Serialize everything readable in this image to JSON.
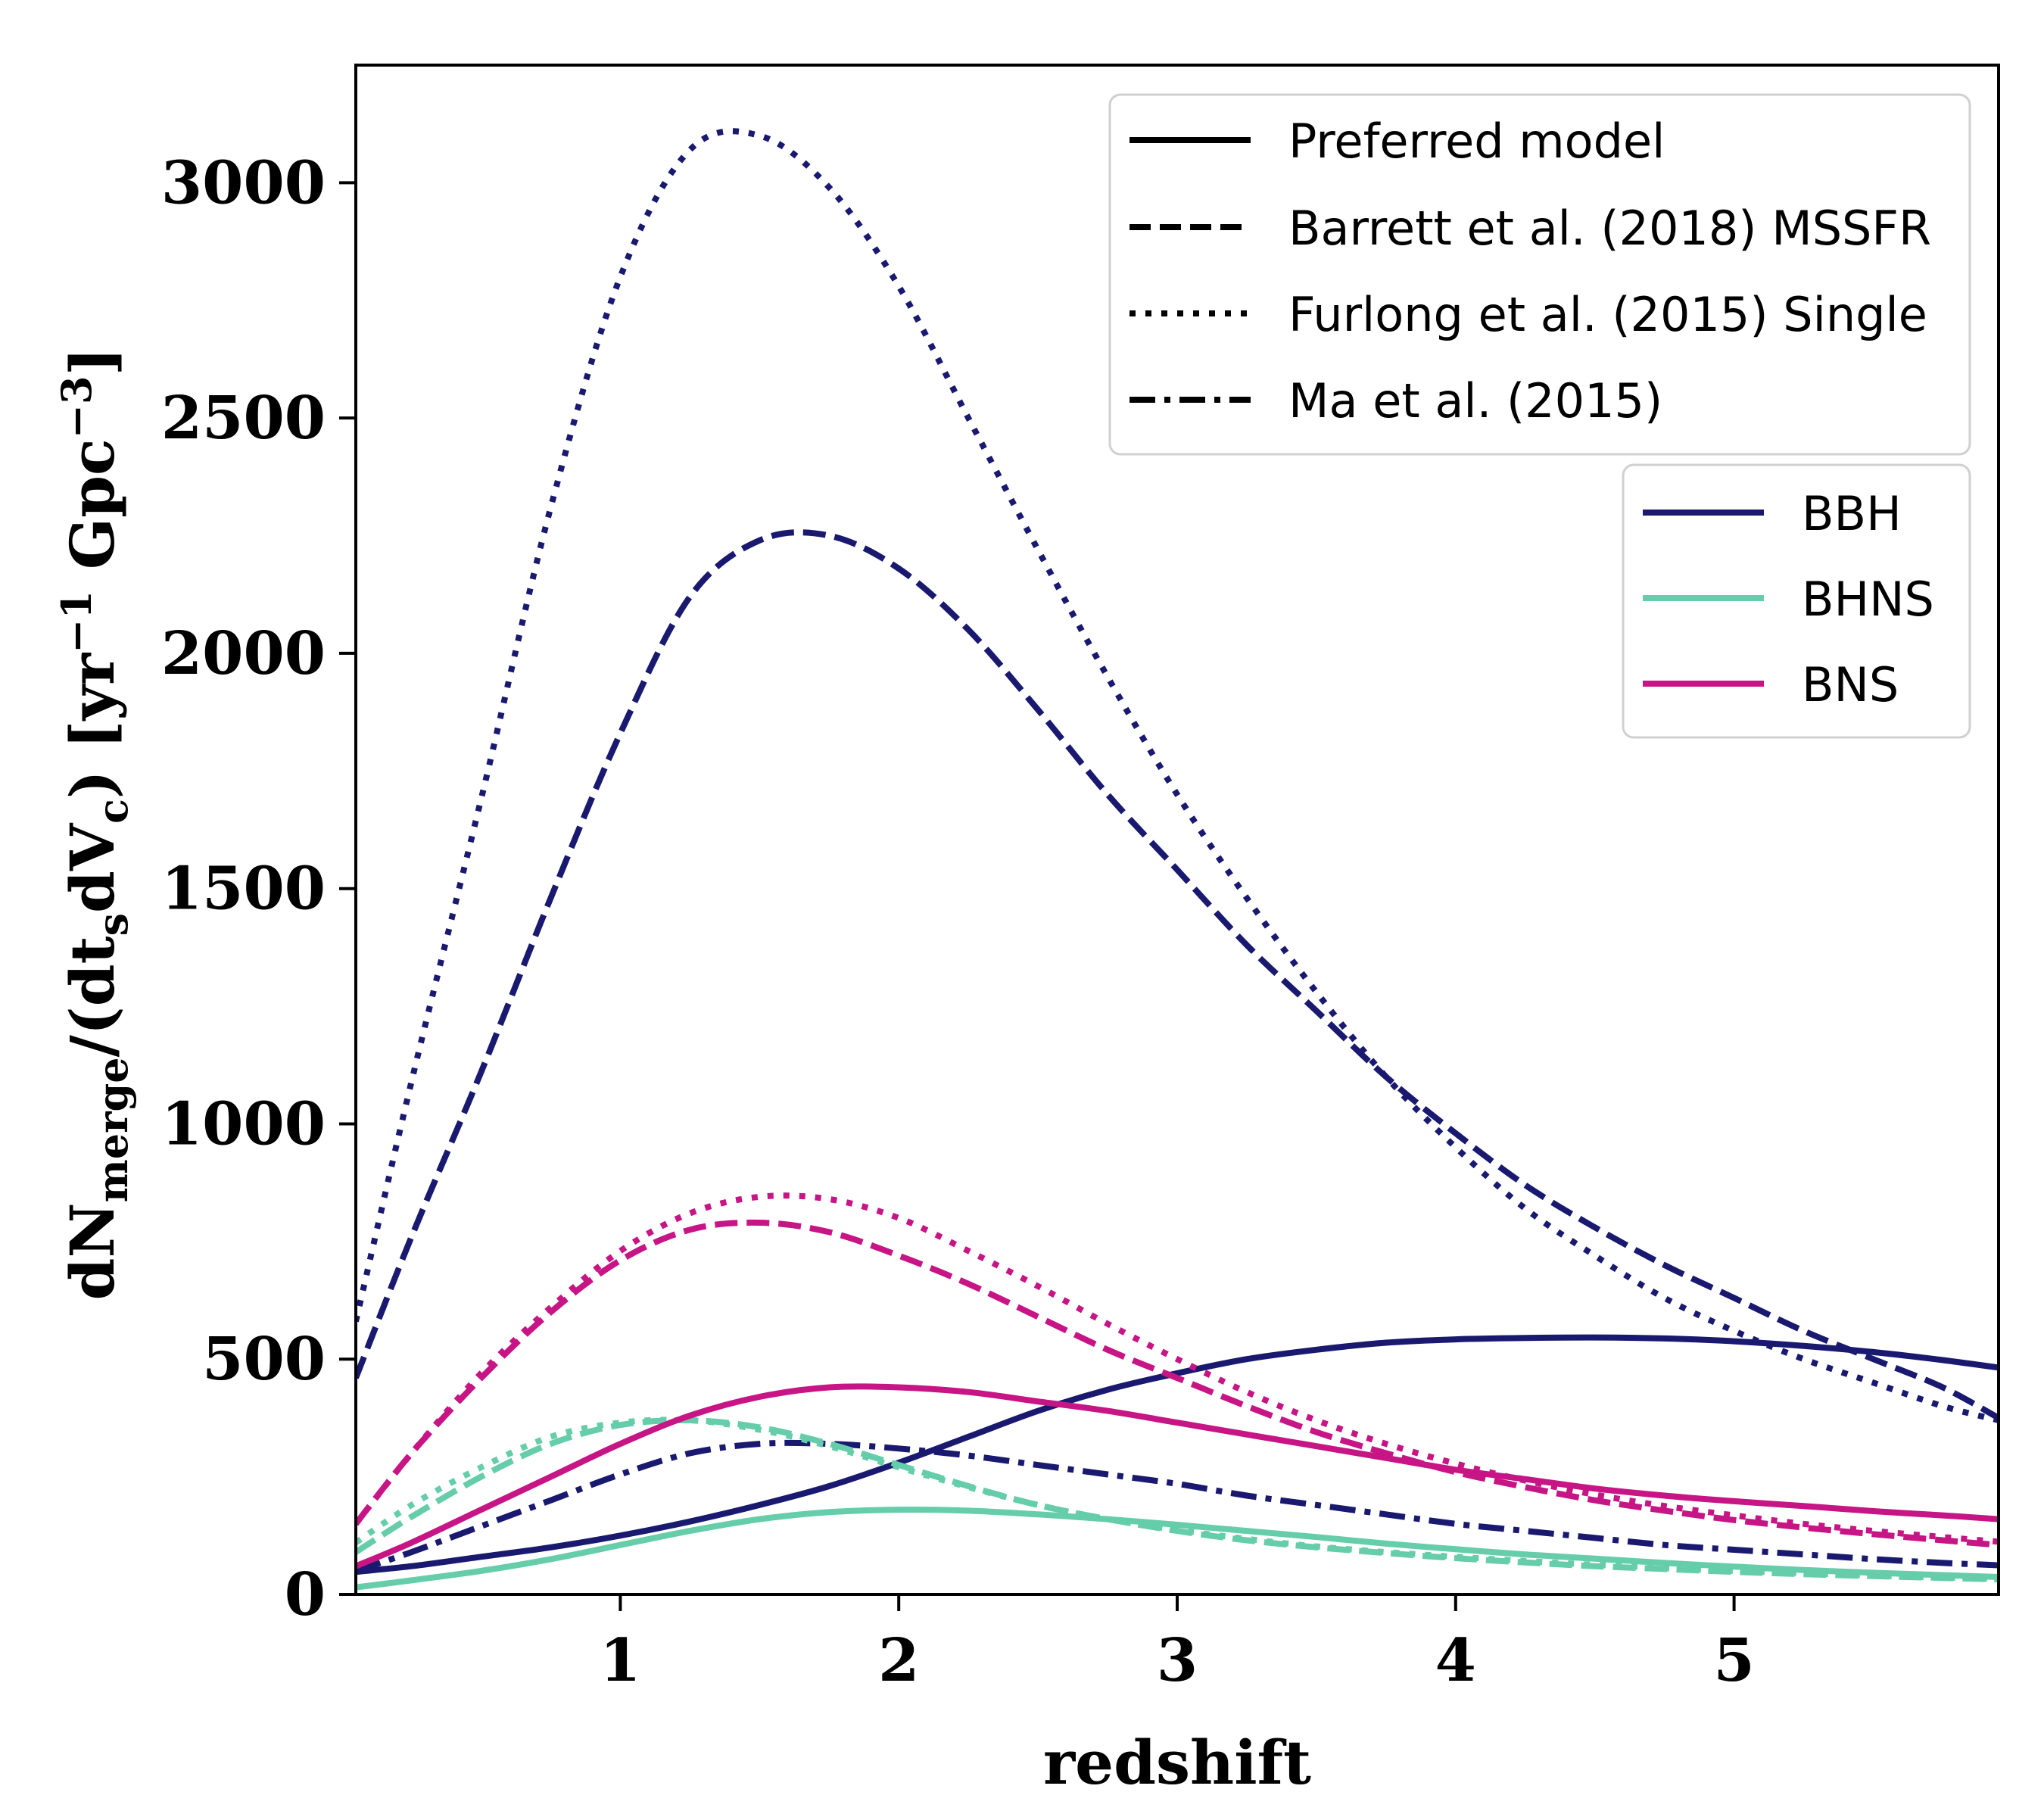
{
  "chart_data": {
    "type": "line",
    "title": "",
    "xlabel": "redshift",
    "ylabel": "dNmerge/(dtsdVc) [yr−1 Gpc−3]",
    "ylabel_parts": {
      "pre": "dN",
      "sub1": "merge",
      "mid": "/(dt",
      "sub2": "s",
      "mid2": "dV",
      "sub3": "c",
      "post1": ") [yr",
      "sup1": "−1",
      "post2": " Gpc",
      "sup2": "−3",
      "post3": "]"
    },
    "xlim": [
      0.05,
      5.95
    ],
    "ylim": [
      0,
      3250
    ],
    "xticks": [
      1,
      2,
      3,
      4,
      5
    ],
    "xtick_labels": [
      "1",
      "2",
      "3",
      "4",
      "5"
    ],
    "yticks": [
      0,
      500,
      1000,
      1500,
      2000,
      2500,
      3000
    ],
    "ytick_labels": [
      "0",
      "500",
      "1000",
      "1500",
      "2000",
      "2500",
      "3000"
    ],
    "grid": false,
    "colors": {
      "BBH": "#191970",
      "BHNS": "#66cdaa",
      "BNS": "#c71585"
    },
    "legend_styles": {
      "placement": "top-right",
      "entries": [
        {
          "label": "Preferred model",
          "style": "solid"
        },
        {
          "label": "Barrett et al. (2018) MSSFR",
          "style": "dashed"
        },
        {
          "label": "Furlong et al. (2015) Single",
          "style": "dotted"
        },
        {
          "label": "Ma et al. (2015)",
          "style": "dashdot"
        }
      ]
    },
    "legend_types": {
      "placement": "right",
      "entries": [
        {
          "label": "BBH",
          "color": "#191970"
        },
        {
          "label": "BHNS",
          "color": "#66cdaa"
        },
        {
          "label": "BNS",
          "color": "#c71585"
        }
      ]
    },
    "x": [
      0.05,
      0.25,
      0.5,
      0.75,
      1.0,
      1.25,
      1.5,
      1.75,
      2.0,
      2.25,
      2.5,
      2.75,
      3.0,
      3.25,
      3.5,
      3.75,
      4.0,
      4.25,
      4.5,
      4.75,
      5.0,
      5.25,
      5.5,
      5.75,
      5.95
    ],
    "series": [
      {
        "type": "BBH",
        "model": "solid",
        "values": [
          48,
          60,
          80,
          100,
          125,
          155,
          190,
          230,
          280,
          335,
          390,
          435,
          470,
          500,
          520,
          535,
          542,
          545,
          546,
          544,
          538,
          528,
          515,
          498,
          482
        ]
      },
      {
        "type": "BBH",
        "model": "dashed",
        "values": [
          460,
          760,
          1110,
          1480,
          1830,
          2120,
          2240,
          2250,
          2180,
          2050,
          1880,
          1700,
          1540,
          1380,
          1240,
          1100,
          980,
          870,
          780,
          700,
          630,
          560,
          500,
          440,
          375
        ]
      },
      {
        "type": "BBH",
        "model": "dotted",
        "values": [
          580,
          1090,
          1690,
          2310,
          2800,
          3070,
          3100,
          2990,
          2780,
          2500,
          2220,
          1950,
          1700,
          1480,
          1280,
          1100,
          950,
          820,
          720,
          630,
          560,
          500,
          450,
          400,
          370
        ]
      },
      {
        "type": "BBH",
        "model": "dashdot",
        "values": [
          50,
          90,
          145,
          200,
          255,
          300,
          320,
          320,
          310,
          295,
          275,
          255,
          235,
          210,
          190,
          170,
          150,
          135,
          120,
          105,
          95,
          85,
          75,
          67,
          62
        ]
      },
      {
        "type": "BHNS",
        "model": "solid",
        "values": [
          15,
          30,
          50,
          75,
          105,
          135,
          160,
          175,
          180,
          178,
          170,
          160,
          148,
          135,
          122,
          108,
          96,
          85,
          76,
          67,
          59,
          52,
          46,
          41,
          37
        ]
      },
      {
        "type": "BHNS",
        "model": "dashed",
        "values": [
          90,
          165,
          250,
          320,
          360,
          370,
          355,
          320,
          275,
          230,
          190,
          160,
          135,
          115,
          100,
          88,
          77,
          68,
          60,
          54,
          48,
          43,
          39,
          35,
          32
        ]
      },
      {
        "type": "BHNS",
        "model": "dotted",
        "values": [
          110,
          190,
          270,
          335,
          365,
          370,
          350,
          315,
          270,
          228,
          190,
          160,
          137,
          118,
          102,
          90,
          80,
          71,
          63,
          56,
          50,
          45,
          40,
          36,
          33
        ]
      },
      {
        "type": "BNS",
        "model": "solid",
        "values": [
          60,
          110,
          180,
          250,
          320,
          380,
          420,
          440,
          440,
          430,
          410,
          390,
          365,
          340,
          315,
          290,
          265,
          245,
          225,
          210,
          198,
          188,
          177,
          168,
          160
        ]
      },
      {
        "type": "BNS",
        "model": "dashed",
        "values": [
          150,
          300,
          460,
          600,
          710,
          775,
          790,
          770,
          720,
          660,
          590,
          520,
          460,
          400,
          345,
          300,
          260,
          228,
          200,
          178,
          158,
          142,
          128,
          115,
          105
        ]
      },
      {
        "type": "BNS",
        "model": "dotted",
        "values": [
          150,
          300,
          470,
          610,
          730,
          810,
          845,
          840,
          800,
          730,
          655,
          575,
          500,
          430,
          370,
          320,
          278,
          242,
          212,
          188,
          168,
          150,
          135,
          122,
          112
        ]
      }
    ]
  }
}
